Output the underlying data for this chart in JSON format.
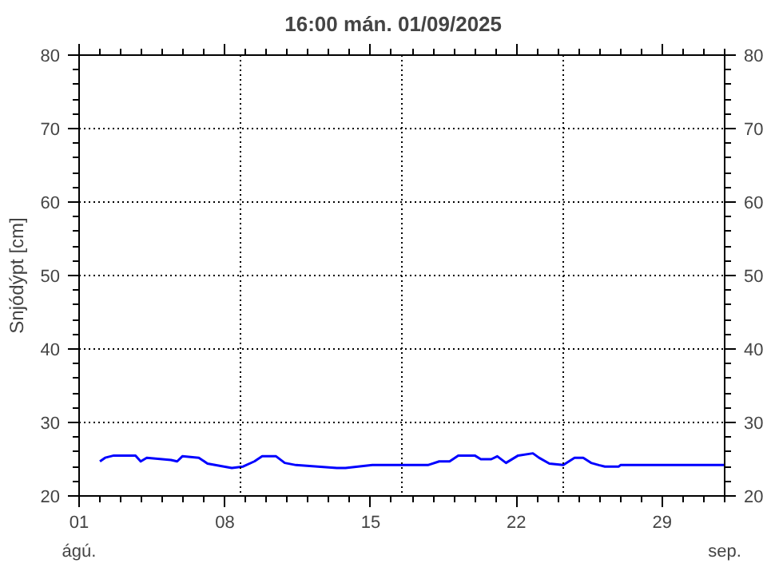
{
  "chart_data": {
    "type": "line",
    "title": "16:00   mán.  01/09/2025",
    "ylabel": "Snjódýpt [cm]",
    "x": [
      "2025-08-02T00:00",
      "2025-08-02T06:00",
      "2025-08-02T16:00",
      "2025-08-03T17:00",
      "2025-08-03T23:00",
      "2025-08-04T06:00",
      "2025-08-05T10:00",
      "2025-08-05T17:00",
      "2025-08-05T23:00",
      "2025-08-06T18:00",
      "2025-08-07T04:00",
      "2025-08-07T23:00",
      "2025-08-08T08:00",
      "2025-08-08T21:00",
      "2025-08-09T10:00",
      "2025-08-09T19:00",
      "2025-08-10T11:00",
      "2025-08-10T21:00",
      "2025-08-11T10:00",
      "2025-08-12T11:00",
      "2025-08-13T09:00",
      "2025-08-13T19:00",
      "2025-08-15T02:00",
      "2025-08-17T18:00",
      "2025-08-18T07:00",
      "2025-08-18T19:00",
      "2025-08-19T05:00",
      "2025-08-20T00:00",
      "2025-08-20T07:00",
      "2025-08-20T19:00",
      "2025-08-21T02:00",
      "2025-08-21T12:00",
      "2025-08-22T02:00",
      "2025-08-22T19:00",
      "2025-08-23T02:00",
      "2025-08-23T14:00",
      "2025-08-24T06:00",
      "2025-08-24T19:00",
      "2025-08-25T05:00",
      "2025-08-25T14:00",
      "2025-08-25T23:00",
      "2025-08-26T06:00",
      "2025-08-26T22:00",
      "2025-08-27T00:00",
      "2025-09-01T00:00"
    ],
    "series": [
      {
        "color": "#0000ff",
        "values": [
          24.7,
          25.2,
          25.5,
          25.5,
          24.7,
          25.2,
          24.9,
          24.7,
          25.4,
          25.2,
          24.4,
          24.0,
          23.8,
          24.0,
          24.7,
          25.4,
          25.4,
          24.5,
          24.2,
          24.0,
          23.8,
          23.8,
          24.2,
          24.2,
          24.7,
          24.7,
          25.5,
          25.5,
          25.0,
          25.0,
          25.4,
          24.5,
          25.5,
          25.8,
          25.2,
          24.4,
          24.2,
          25.2,
          25.2,
          24.5,
          24.2,
          24.0,
          24.0,
          24.2,
          24.2
        ]
      }
    ],
    "xlim": [
      "2025-08-01T00:00",
      "2025-09-01T00:00"
    ],
    "xticks": [
      {
        "value": "2025-08-01T00:00",
        "label": "01"
      },
      {
        "value": "2025-08-08T00:00",
        "label": "08"
      },
      {
        "value": "2025-08-15T00:00",
        "label": "15"
      },
      {
        "value": "2025-08-22T00:00",
        "label": "22"
      },
      {
        "value": "2025-08-29T00:00",
        "label": "29"
      },
      {
        "value": "2025-09-01T00:00",
        "label": null
      },
      {
        "value": "2025-08-02T00:00",
        "label": null
      },
      {
        "value": "2025-08-03T00:00",
        "label": null
      },
      {
        "value": "2025-08-04T00:00",
        "label": null
      },
      {
        "value": "2025-08-05T00:00",
        "label": null
      },
      {
        "value": "2025-08-06T00:00",
        "label": null
      },
      {
        "value": "2025-08-07T00:00",
        "label": null
      },
      {
        "value": "2025-08-09T00:00",
        "label": null
      },
      {
        "value": "2025-08-10T00:00",
        "label": null
      },
      {
        "value": "2025-08-11T00:00",
        "label": null
      },
      {
        "value": "2025-08-12T00:00",
        "label": null
      },
      {
        "value": "2025-08-13T00:00",
        "label": null
      },
      {
        "value": "2025-08-14T00:00",
        "label": null
      },
      {
        "value": "2025-08-16T00:00",
        "label": null
      },
      {
        "value": "2025-08-17T00:00",
        "label": null
      },
      {
        "value": "2025-08-18T00:00",
        "label": null
      },
      {
        "value": "2025-08-19T00:00",
        "label": null
      },
      {
        "value": "2025-08-20T00:00",
        "label": null
      },
      {
        "value": "2025-08-21T00:00",
        "label": null
      },
      {
        "value": "2025-08-23T00:00",
        "label": null
      },
      {
        "value": "2025-08-24T00:00",
        "label": null
      },
      {
        "value": "2025-08-25T00:00",
        "label": null
      },
      {
        "value": "2025-08-26T00:00",
        "label": null
      },
      {
        "value": "2025-08-27T00:00",
        "label": null
      },
      {
        "value": "2025-08-28T00:00",
        "label": null
      },
      {
        "value": "2025-08-30T00:00",
        "label": null
      },
      {
        "value": "2025-08-31T00:00",
        "label": null
      }
    ],
    "ylim": [
      20,
      80
    ],
    "yticks": [
      20,
      30,
      40,
      50,
      60,
      70,
      80,
      {
        "value": 22,
        "label": null
      },
      {
        "value": 24,
        "label": null
      },
      {
        "value": 26,
        "label": null
      },
      {
        "value": 28,
        "label": null
      },
      {
        "value": 32,
        "label": null
      },
      {
        "value": 34,
        "label": null
      },
      {
        "value": 36,
        "label": null
      },
      {
        "value": 38,
        "label": null
      },
      {
        "value": 42,
        "label": null
      },
      {
        "value": 44,
        "label": null
      },
      {
        "value": 46,
        "label": null
      },
      {
        "value": 48,
        "label": null
      },
      {
        "value": 52,
        "label": null
      },
      {
        "value": 54,
        "label": null
      },
      {
        "value": 56,
        "label": null
      },
      {
        "value": 58,
        "label": null
      },
      {
        "value": 62,
        "label": null
      },
      {
        "value": 64,
        "label": null
      },
      {
        "value": 66,
        "label": null
      },
      {
        "value": 68,
        "label": null
      },
      {
        "value": 72,
        "label": null
      },
      {
        "value": 74,
        "label": null
      },
      {
        "value": 76,
        "label": null
      },
      {
        "value": 78,
        "label": null
      }
    ],
    "y2lim": [
      20,
      80
    ],
    "y2ticks": [
      20,
      30,
      40,
      50,
      60,
      70,
      80,
      {
        "value": 22,
        "label": null
      },
      {
        "value": 24,
        "label": null
      },
      {
        "value": 26,
        "label": null
      },
      {
        "value": 28,
        "label": null
      },
      {
        "value": 32,
        "label": null
      },
      {
        "value": 34,
        "label": null
      },
      {
        "value": 36,
        "label": null
      },
      {
        "value": 38,
        "label": null
      },
      {
        "value": 42,
        "label": null
      },
      {
        "value": 44,
        "label": null
      },
      {
        "value": 46,
        "label": null
      },
      {
        "value": 48,
        "label": null
      },
      {
        "value": 52,
        "label": null
      },
      {
        "value": 54,
        "label": null
      },
      {
        "value": 56,
        "label": null
      },
      {
        "value": 58,
        "label": null
      },
      {
        "value": 62,
        "label": null
      },
      {
        "value": 64,
        "label": null
      },
      {
        "value": 66,
        "label": null
      },
      {
        "value": 68,
        "label": null
      },
      {
        "value": 72,
        "label": null
      },
      {
        "value": 74,
        "label": null
      },
      {
        "value": 76,
        "label": null
      },
      {
        "value": 78,
        "label": null
      }
    ],
    "annotations": [
      "ágú.",
      "sep."
    ],
    "grid": "y",
    "ref_lines": [
      {
        "axis": "x",
        "value": "2025-08-08T18:00",
        "color": "#000000",
        "line_style": "dotted"
      },
      {
        "axis": "x",
        "value": "2025-08-16T12:00",
        "color": "#000000",
        "line_style": "dotted"
      },
      {
        "axis": "x",
        "value": "2025-08-24T06:00",
        "color": "#000000",
        "line_style": "dotted"
      }
    ]
  }
}
